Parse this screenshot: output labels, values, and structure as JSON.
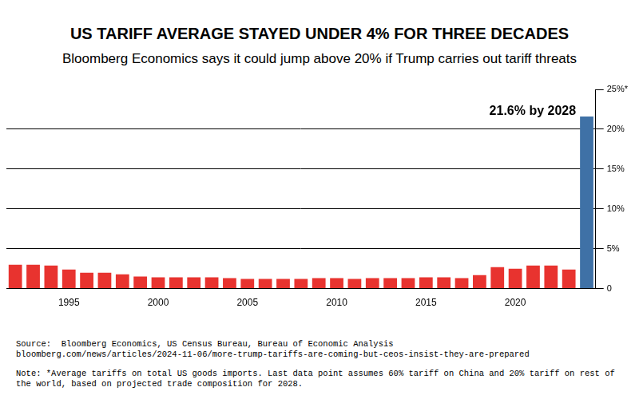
{
  "chart_data": {
    "type": "bar",
    "title": "US TARIFF AVERAGE STAYED UNDER 4% FOR THREE DECADES",
    "subtitle": "Bloomberg Economics says it could jump above 20% if Trump carries out tariff threats",
    "categories": [
      null,
      null,
      null,
      "1995",
      null,
      null,
      null,
      null,
      "2000",
      null,
      null,
      null,
      null,
      "2005",
      null,
      null,
      null,
      null,
      "2010",
      null,
      null,
      null,
      null,
      "2015",
      null,
      null,
      null,
      null,
      "2020",
      null,
      null,
      null,
      null
    ],
    "values": [
      3.0,
      3.0,
      2.9,
      2.4,
      2.0,
      2.0,
      1.8,
      1.5,
      1.4,
      1.4,
      1.4,
      1.4,
      1.3,
      1.2,
      1.2,
      1.2,
      1.2,
      1.3,
      1.3,
      1.2,
      1.3,
      1.3,
      1.3,
      1.4,
      1.4,
      1.3,
      1.7,
      2.7,
      2.5,
      2.9,
      2.9,
      2.4,
      21.6
    ],
    "colors": [
      "#e8332f",
      "#e8332f",
      "#e8332f",
      "#e8332f",
      "#e8332f",
      "#e8332f",
      "#e8332f",
      "#e8332f",
      "#e8332f",
      "#e8332f",
      "#e8332f",
      "#e8332f",
      "#e8332f",
      "#e8332f",
      "#e8332f",
      "#e8332f",
      "#e8332f",
      "#e8332f",
      "#e8332f",
      "#e8332f",
      "#e8332f",
      "#e8332f",
      "#e8332f",
      "#e8332f",
      "#e8332f",
      "#e8332f",
      "#e8332f",
      "#e8332f",
      "#e8332f",
      "#e8332f",
      "#e8332f",
      "#e8332f",
      "#3f71a6"
    ],
    "annotation": "21.6% by 2028",
    "ylim": [
      0,
      25
    ],
    "yticks": [
      0,
      {
        "value": 5,
        "label": "5%"
      },
      {
        "value": 10,
        "label": "10%"
      },
      {
        "value": 15,
        "label": "15%"
      },
      {
        "value": 20,
        "label": "20%"
      },
      {
        "value": 25,
        "label": "25%*"
      }
    ],
    "grid": true,
    "source": [
      "Source:  Bloomberg Economics, US Census Bureau, Bureau of Economic Analysis",
      "bloomberg.com/news/articles/2024-11-06/more-trump-tariffs-are-coming-but-ceos-insist-they-are-prepared"
    ],
    "note": "Note: *Average tariffs on total US goods imports. Last data point assumes 60% tariff on China and 20% tariff on rest of the world, based on projected trade composition for 2028."
  }
}
